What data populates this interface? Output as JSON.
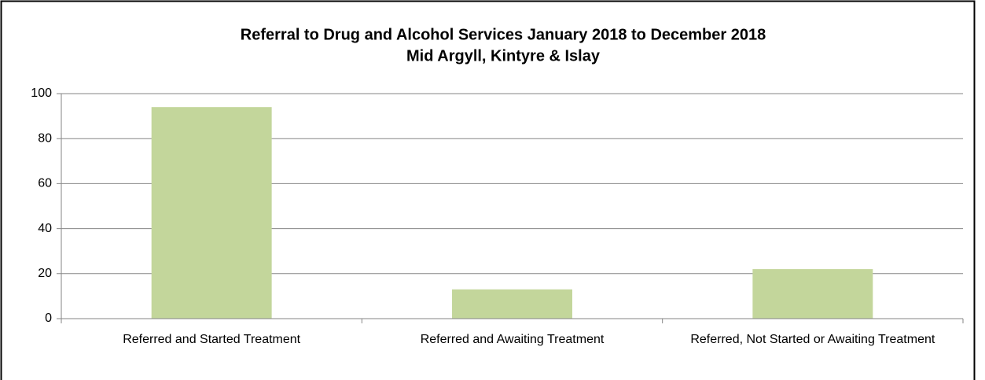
{
  "chart_data": {
    "type": "bar",
    "title": "Referral to Drug and Alcohol Services January 2018 to December 2018",
    "subtitle": "Mid Argyll, Kintyre & Islay",
    "categories": [
      "Referred and Started Treatment",
      "Referred and Awaiting Treatment",
      "Referred, Not Started or Awaiting Treatment"
    ],
    "values": [
      94,
      13,
      22
    ],
    "color": "#c3d69b",
    "ylim": [
      0,
      100
    ],
    "yticks": [
      0,
      20,
      40,
      60,
      80,
      100
    ],
    "grid": true
  }
}
